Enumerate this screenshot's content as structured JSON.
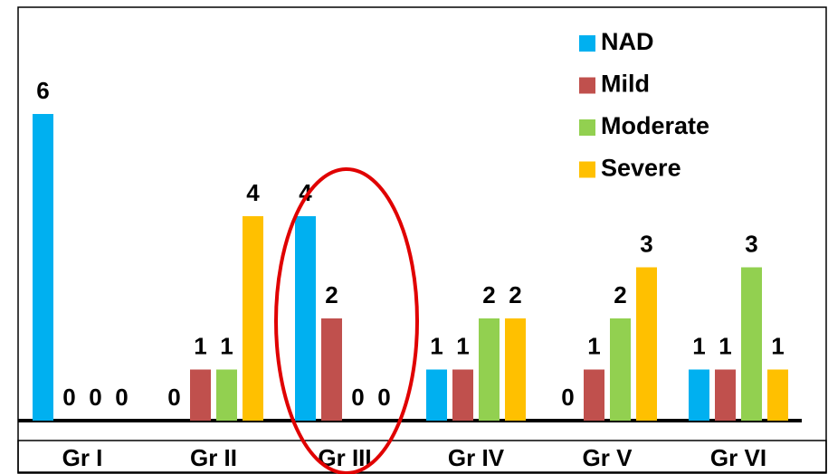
{
  "chart_data": {
    "type": "bar",
    "categories": [
      "Gr I",
      "Gr II",
      "Gr III",
      "Gr IV",
      "Gr V",
      "Gr VI"
    ],
    "series": [
      {
        "name": "NAD",
        "color": "#00b0f0",
        "values": [
          6,
          0,
          4,
          1,
          0,
          1
        ]
      },
      {
        "name": "Mild",
        "color": "#c0504d",
        "values": [
          0,
          1,
          2,
          1,
          1,
          1
        ]
      },
      {
        "name": "Moderate",
        "color": "#92d050",
        "values": [
          0,
          1,
          0,
          2,
          2,
          3
        ]
      },
      {
        "name": "Severe",
        "color": "#ffc000",
        "values": [
          0,
          4,
          0,
          2,
          3,
          1
        ]
      }
    ],
    "ylim": [
      0,
      8
    ],
    "legend": "top-right"
  }
}
